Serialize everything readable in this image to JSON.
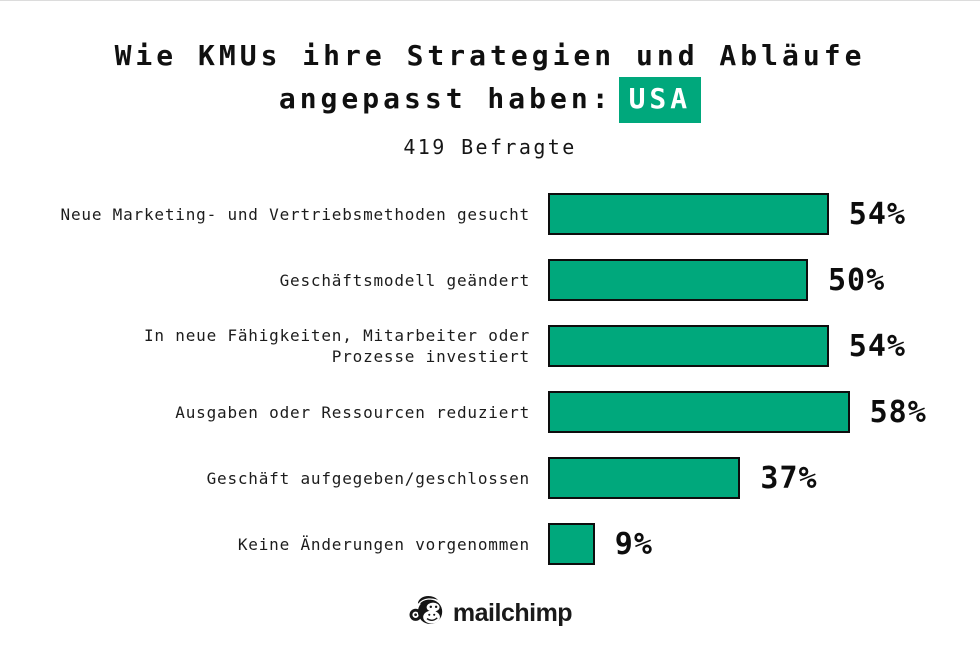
{
  "page": {
    "title_line1": "Wie KMUs ihre Strategien und Abläufe",
    "title_line2_prefix": "angepasst haben:",
    "title_highlight": "USA",
    "subtitle": "419 Befragte"
  },
  "colors": {
    "bar_fill": "#00a87c",
    "bar_border": "#0d0d0d",
    "highlight_bg": "#00a87c",
    "highlight_text": "#ffffff",
    "text": "#141414"
  },
  "footer": {
    "brand": "mailchimp",
    "logo_icon": "mailchimp-freddie-icon"
  },
  "chart_data": {
    "type": "bar",
    "orientation": "horizontal",
    "title": "Wie KMUs ihre Strategien und Abläufe angepasst haben: USA",
    "subtitle": "419 Befragte",
    "unit": "%",
    "xlim": [
      0,
      60
    ],
    "grid": false,
    "legend": false,
    "bar_color": "#00a87c",
    "categories": [
      "Neue Marketing- und Vertriebsmethoden gesucht",
      "Geschäftsmodell geändert",
      "In neue Fähigkeiten, Mitarbeiter oder\nProzesse investiert",
      "Ausgaben oder Ressourcen reduziert",
      "Geschäft aufgegeben/geschlossen",
      "Keine Änderungen vorgenommen"
    ],
    "values": [
      54,
      50,
      54,
      58,
      37,
      9
    ],
    "value_labels": [
      "54%",
      "50%",
      "54%",
      "58%",
      "37%",
      "9%"
    ]
  }
}
